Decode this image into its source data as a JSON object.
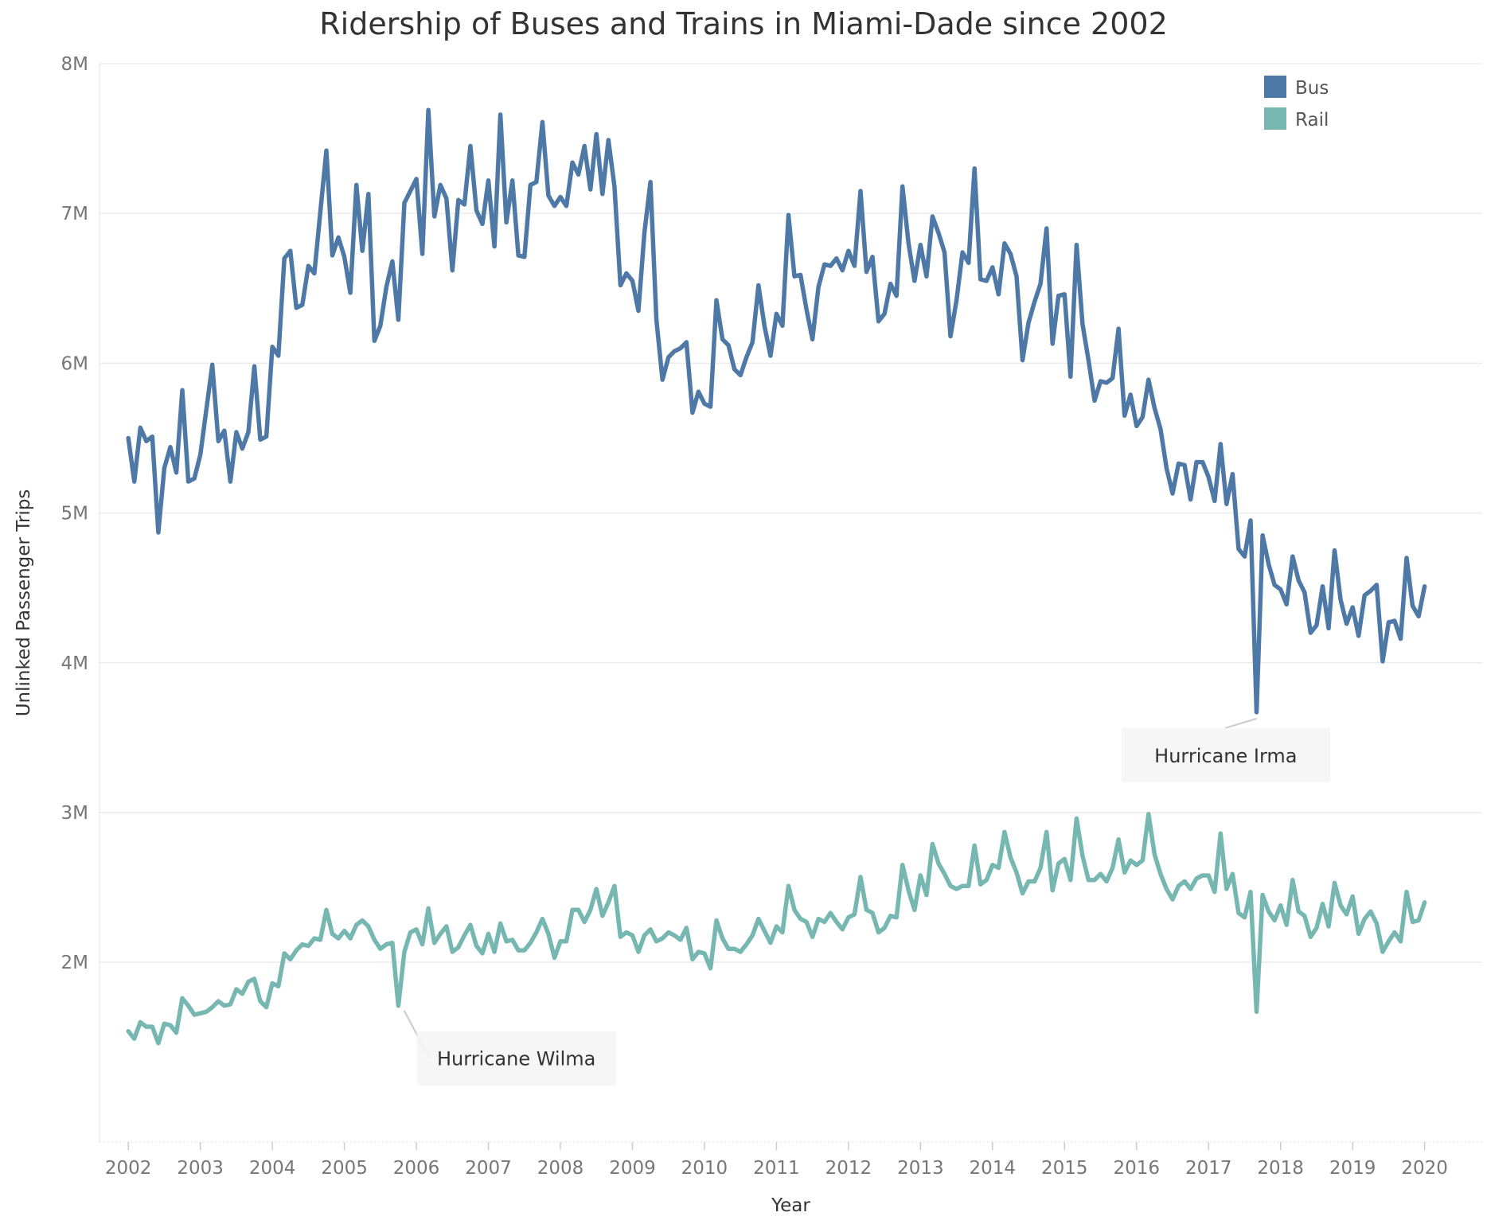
{
  "chart_data": {
    "type": "line",
    "title": "Ridership of Buses and Trains in Miami-Dade since 2002",
    "xlabel": "Year",
    "ylabel": "Unlinked Passenger Trips",
    "xlim": [
      2001.6,
      2020.8
    ],
    "ylim": [
      800000,
      8000000
    ],
    "x_ticks": [
      2002,
      2003,
      2004,
      2005,
      2006,
      2007,
      2008,
      2009,
      2010,
      2011,
      2012,
      2013,
      2014,
      2015,
      2016,
      2017,
      2018,
      2019,
      2020
    ],
    "x_tick_labels": [
      "2002",
      "2003",
      "2004",
      "2005",
      "2006",
      "2007",
      "2008",
      "2009",
      "2010",
      "2011",
      "2012",
      "2013",
      "2014",
      "2015",
      "2016",
      "2017",
      "2018",
      "2019",
      "2020"
    ],
    "y_ticks": [
      2000000,
      3000000,
      4000000,
      5000000,
      6000000,
      7000000,
      8000000
    ],
    "y_tick_labels": [
      "2M",
      "3M",
      "4M",
      "5M",
      "6M",
      "7M",
      "8M"
    ],
    "grid": "horizontal",
    "legend_position": "top-right",
    "series": [
      {
        "name": "Bus",
        "color": "#4e79a7",
        "start_year": 2002,
        "start_month": 1,
        "values": [
          5.5,
          5.21,
          5.57,
          5.48,
          5.51,
          4.87,
          5.3,
          5.44,
          5.27,
          5.82,
          5.21,
          5.23,
          5.39,
          5.69,
          5.99,
          5.48,
          5.55,
          5.21,
          5.54,
          5.43,
          5.54,
          5.98,
          5.49,
          5.51,
          6.11,
          6.05,
          6.7,
          6.75,
          6.37,
          6.39,
          6.65,
          6.6,
          7.01,
          7.42,
          6.72,
          6.84,
          6.71,
          6.47,
          7.19,
          6.75,
          7.13,
          6.15,
          6.25,
          6.51,
          6.68,
          6.29,
          7.07,
          7.15,
          7.23,
          6.73,
          7.69,
          6.98,
          7.19,
          7.1,
          6.62,
          7.09,
          7.06,
          7.45,
          7.02,
          6.93,
          7.22,
          6.78,
          7.66,
          6.94,
          7.22,
          6.72,
          6.71,
          7.19,
          7.21,
          7.61,
          7.12,
          7.05,
          7.11,
          7.05,
          7.34,
          7.26,
          7.45,
          7.16,
          7.53,
          7.13,
          7.49,
          7.18,
          6.52,
          6.6,
          6.55,
          6.35,
          6.87,
          7.21,
          6.29,
          5.89,
          6.04,
          6.08,
          6.1,
          6.14,
          5.67,
          5.81,
          5.73,
          5.71,
          6.42,
          6.16,
          6.12,
          5.96,
          5.92,
          6.04,
          6.14,
          6.52,
          6.25,
          6.05,
          6.33,
          6.25,
          6.99,
          6.58,
          6.59,
          6.36,
          6.16,
          6.51,
          6.66,
          6.65,
          6.7,
          6.62,
          6.75,
          6.65,
          7.15,
          6.61,
          6.71,
          6.28,
          6.33,
          6.53,
          6.45,
          7.18,
          6.8,
          6.55,
          6.79,
          6.58,
          6.98,
          6.87,
          6.74,
          6.18,
          6.42,
          6.74,
          6.67,
          7.3,
          6.56,
          6.55,
          6.64,
          6.46,
          6.8,
          6.73,
          6.58,
          6.02,
          6.27,
          6.41,
          6.53,
          6.9,
          6.13,
          6.45,
          6.46,
          5.91,
          6.79,
          6.26,
          6.02,
          5.75,
          5.88,
          5.87,
          5.9,
          6.23,
          5.65,
          5.79,
          5.58,
          5.64,
          5.89,
          5.7,
          5.56,
          5.3,
          5.13,
          5.33,
          5.32,
          5.09,
          5.34,
          5.34,
          5.24,
          5.08,
          5.46,
          5.06,
          5.26,
          4.76,
          4.71,
          4.95,
          3.67,
          4.85,
          4.66,
          4.52,
          4.49,
          4.39,
          4.71,
          4.55,
          4.47,
          4.2,
          4.25,
          4.51,
          4.23,
          4.75,
          4.42,
          4.26,
          4.37,
          4.18,
          4.45,
          4.48,
          4.52,
          4.01,
          4.27,
          4.28,
          4.16,
          4.7,
          4.38,
          4.31,
          4.51
        ]
      },
      {
        "name": "Rail",
        "color": "#76b7b2",
        "start_year": 2002,
        "start_month": 1,
        "values": [
          1.54,
          1.49,
          1.6,
          1.57,
          1.57,
          1.46,
          1.59,
          1.58,
          1.53,
          1.76,
          1.71,
          1.65,
          1.66,
          1.67,
          1.7,
          1.74,
          1.71,
          1.72,
          1.82,
          1.79,
          1.87,
          1.89,
          1.74,
          1.7,
          1.86,
          1.84,
          2.06,
          2.02,
          2.08,
          2.12,
          2.11,
          2.16,
          2.15,
          2.35,
          2.19,
          2.16,
          2.21,
          2.16,
          2.25,
          2.28,
          2.24,
          2.15,
          2.09,
          2.12,
          2.13,
          1.71,
          2.07,
          2.2,
          2.22,
          2.12,
          2.36,
          2.13,
          2.19,
          2.24,
          2.07,
          2.1,
          2.18,
          2.25,
          2.11,
          2.06,
          2.19,
          2.07,
          2.26,
          2.14,
          2.15,
          2.08,
          2.08,
          2.13,
          2.2,
          2.29,
          2.19,
          2.03,
          2.14,
          2.14,
          2.35,
          2.35,
          2.27,
          2.35,
          2.49,
          2.31,
          2.4,
          2.51,
          2.17,
          2.2,
          2.18,
          2.07,
          2.18,
          2.22,
          2.14,
          2.16,
          2.2,
          2.18,
          2.15,
          2.23,
          2.02,
          2.07,
          2.06,
          1.96,
          2.28,
          2.16,
          2.09,
          2.09,
          2.07,
          2.12,
          2.18,
          2.29,
          2.21,
          2.13,
          2.24,
          2.2,
          2.51,
          2.35,
          2.29,
          2.27,
          2.17,
          2.29,
          2.27,
          2.33,
          2.27,
          2.22,
          2.3,
          2.32,
          2.57,
          2.35,
          2.33,
          2.2,
          2.23,
          2.31,
          2.3,
          2.65,
          2.48,
          2.35,
          2.58,
          2.45,
          2.79,
          2.66,
          2.59,
          2.51,
          2.49,
          2.51,
          2.51,
          2.78,
          2.52,
          2.55,
          2.65,
          2.63,
          2.87,
          2.7,
          2.6,
          2.46,
          2.54,
          2.54,
          2.63,
          2.87,
          2.48,
          2.66,
          2.69,
          2.55,
          2.96,
          2.71,
          2.55,
          2.55,
          2.59,
          2.54,
          2.63,
          2.82,
          2.6,
          2.68,
          2.65,
          2.68,
          2.99,
          2.72,
          2.59,
          2.49,
          2.42,
          2.51,
          2.54,
          2.49,
          2.56,
          2.58,
          2.58,
          2.47,
          2.86,
          2.49,
          2.59,
          2.33,
          2.3,
          2.47,
          1.67,
          2.45,
          2.34,
          2.28,
          2.38,
          2.25,
          2.55,
          2.34,
          2.31,
          2.17,
          2.23,
          2.39,
          2.24,
          2.53,
          2.38,
          2.32,
          2.44,
          2.19,
          2.29,
          2.34,
          2.26,
          2.07,
          2.14,
          2.2,
          2.14,
          2.47,
          2.27,
          2.28,
          2.4
        ]
      }
    ],
    "annotations": [
      {
        "text": "Hurricane Wilma",
        "series": "Rail",
        "x": 2005.83,
        "y": 1710000
      },
      {
        "text": "Hurricane Irma",
        "series": "Bus",
        "x": 2017.67,
        "y": 3670000
      }
    ]
  }
}
